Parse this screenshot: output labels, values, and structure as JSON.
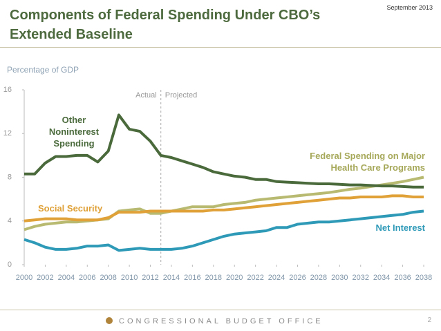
{
  "header": {
    "title": "Components of Federal Spending Under CBO’s Extended Baseline",
    "date": "September 2013"
  },
  "footer": {
    "org": "CONGRESSIONAL BUDGET OFFICE",
    "page": 2
  },
  "chart_data": {
    "type": "line",
    "y_label": "Percentage of GDP",
    "x": [
      2000,
      2001,
      2002,
      2003,
      2004,
      2005,
      2006,
      2007,
      2008,
      2009,
      2010,
      2011,
      2012,
      2013,
      2014,
      2015,
      2016,
      2017,
      2018,
      2019,
      2020,
      2021,
      2022,
      2023,
      2024,
      2025,
      2026,
      2027,
      2028,
      2029,
      2030,
      2031,
      2032,
      2033,
      2034,
      2035,
      2036,
      2037,
      2038
    ],
    "xlim": [
      2000,
      2038
    ],
    "xticks": [
      2000,
      2002,
      2004,
      2006,
      2008,
      2010,
      2012,
      2014,
      2016,
      2018,
      2020,
      2022,
      2024,
      2026,
      2028,
      2030,
      2032,
      2034,
      2036,
      2038
    ],
    "ylim": [
      0,
      16
    ],
    "yticks": [
      0,
      4,
      8,
      12,
      16
    ],
    "divider": {
      "x": 2013,
      "left_label": "Actual",
      "right_label": "Projected"
    },
    "series": [
      {
        "name": "Other Noninterest Spending",
        "color": "#4a6a3c",
        "values": [
          8.3,
          8.3,
          9.3,
          9.9,
          9.9,
          10.0,
          10.0,
          9.4,
          10.4,
          13.7,
          12.4,
          12.2,
          11.3,
          10.0,
          9.8,
          9.5,
          9.2,
          8.9,
          8.5,
          8.3,
          8.1,
          8.0,
          7.8,
          7.8,
          7.6,
          7.55,
          7.5,
          7.45,
          7.4,
          7.4,
          7.35,
          7.3,
          7.3,
          7.25,
          7.2,
          7.2,
          7.15,
          7.1,
          7.1
        ]
      },
      {
        "name": "Federal Spending on Major Health Care Programs",
        "color": "#b8ba72",
        "values": [
          3.2,
          3.5,
          3.7,
          3.8,
          3.9,
          3.9,
          4.0,
          4.1,
          4.2,
          4.9,
          5.0,
          5.1,
          4.7,
          4.7,
          4.9,
          5.1,
          5.3,
          5.3,
          5.3,
          5.5,
          5.6,
          5.7,
          5.9,
          6.0,
          6.1,
          6.2,
          6.3,
          6.4,
          6.5,
          6.6,
          6.75,
          6.9,
          7.0,
          7.15,
          7.3,
          7.45,
          7.6,
          7.8,
          8.0
        ]
      },
      {
        "name": "Social Security",
        "color": "#dfa138",
        "values": [
          4.0,
          4.1,
          4.2,
          4.2,
          4.2,
          4.1,
          4.1,
          4.1,
          4.3,
          4.8,
          4.8,
          4.8,
          4.9,
          4.9,
          4.9,
          4.9,
          4.9,
          4.9,
          5.0,
          5.0,
          5.1,
          5.2,
          5.3,
          5.4,
          5.5,
          5.6,
          5.7,
          5.8,
          5.9,
          6.0,
          6.1,
          6.1,
          6.2,
          6.2,
          6.2,
          6.3,
          6.3,
          6.2,
          6.2
        ]
      },
      {
        "name": "Net Interest",
        "color": "#2f9ab8",
        "values": [
          2.3,
          2.0,
          1.6,
          1.4,
          1.4,
          1.5,
          1.7,
          1.7,
          1.8,
          1.3,
          1.4,
          1.5,
          1.4,
          1.4,
          1.4,
          1.5,
          1.7,
          2.0,
          2.3,
          2.6,
          2.8,
          2.9,
          3.0,
          3.1,
          3.4,
          3.4,
          3.7,
          3.8,
          3.9,
          3.9,
          4.0,
          4.1,
          4.2,
          4.3,
          4.4,
          4.5,
          4.6,
          4.8,
          4.9
        ]
      }
    ]
  }
}
